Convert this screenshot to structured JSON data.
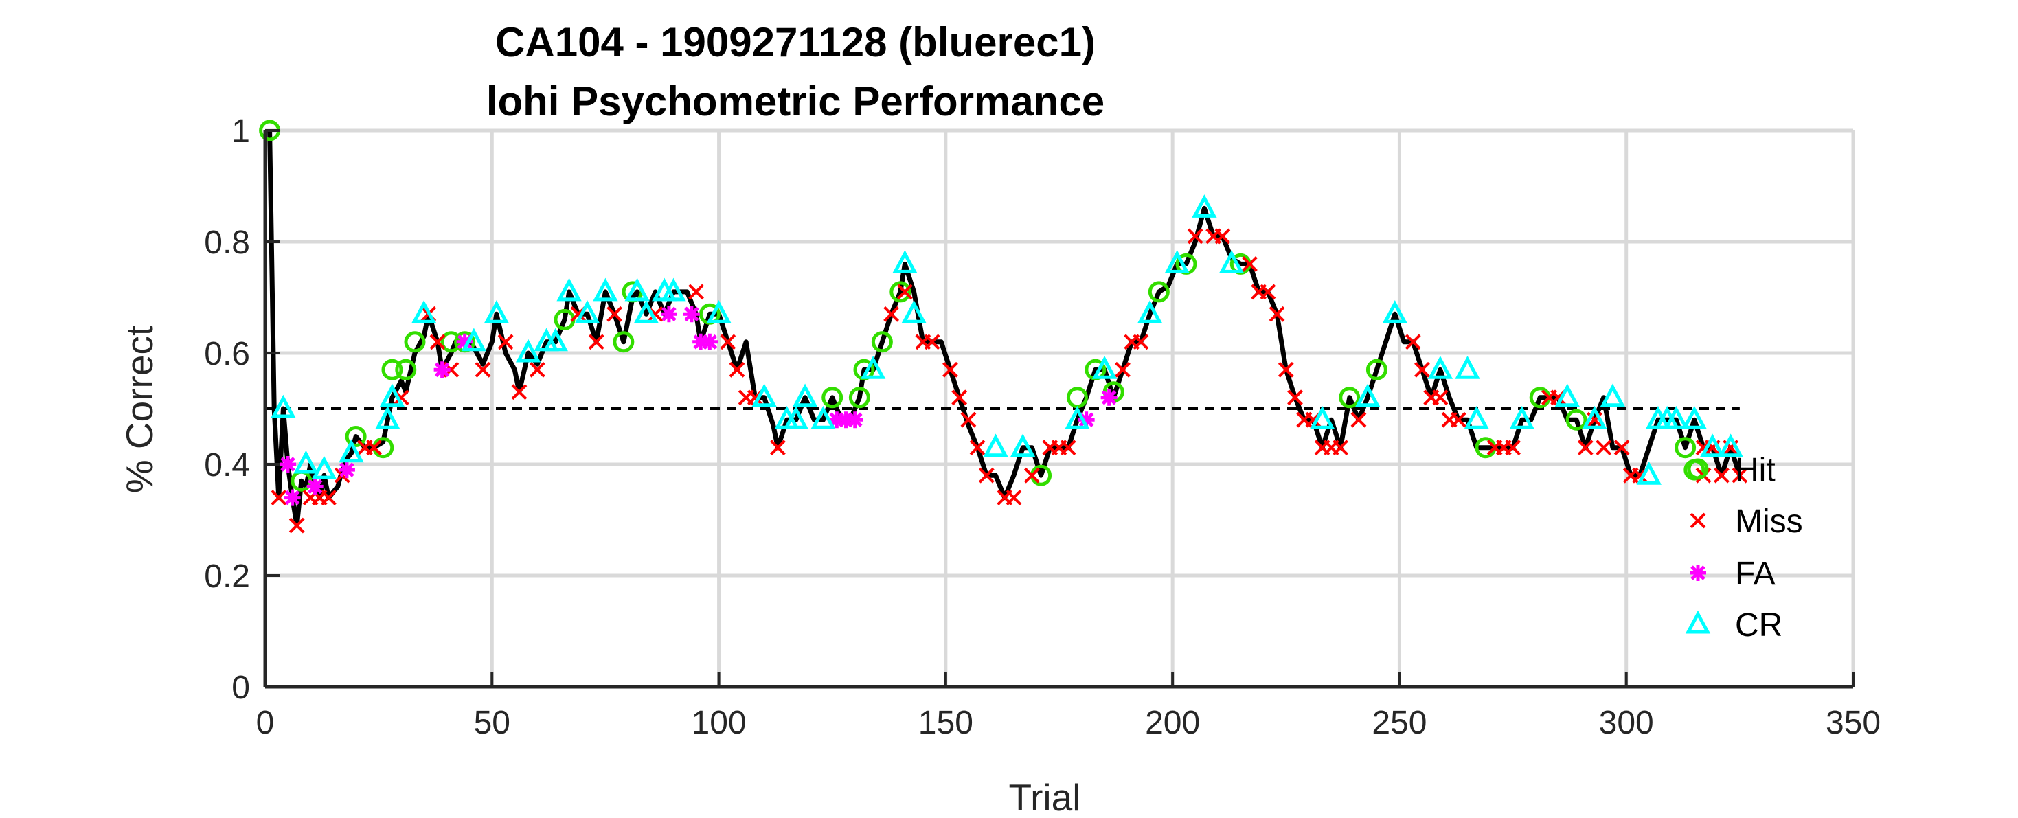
{
  "chart_data": {
    "type": "line",
    "title": "CA104 - 1909271128 (bluerec1)",
    "subtitle": "lohi Psychometric Performance",
    "xlabel": "Trial",
    "ylabel": "% Correct",
    "xlim": [
      0,
      350
    ],
    "ylim": [
      0,
      1
    ],
    "xticks": [
      "0",
      "50",
      "100",
      "150",
      "200",
      "250",
      "300",
      "350"
    ],
    "yticks": [
      "0",
      "0.2",
      "0.4",
      "0.6",
      "0.8",
      "1"
    ],
    "grid": true,
    "legend_position": "right",
    "reference_line": {
      "y": 0.5,
      "x_range": [
        0,
        325
      ],
      "style": "dashed"
    },
    "colors": {
      "line": "#000000",
      "Hit": "#33dd00",
      "Miss": "#ff0000",
      "FA": "#ff00ff",
      "CR": "#00ffff",
      "ref": "#000000",
      "grid": "#d9d9d9"
    },
    "performance_line": [
      [
        1,
        1.0
      ],
      [
        2,
        0.5
      ],
      [
        3,
        0.34
      ],
      [
        4,
        0.5
      ],
      [
        5,
        0.4
      ],
      [
        6,
        0.34
      ],
      [
        7,
        0.29
      ],
      [
        8,
        0.37
      ],
      [
        9,
        0.36
      ],
      [
        10,
        0.4
      ],
      [
        11,
        0.36
      ],
      [
        12,
        0.34
      ],
      [
        13,
        0.38
      ],
      [
        14,
        0.34
      ],
      [
        15,
        0.35
      ],
      [
        16,
        0.36
      ],
      [
        17,
        0.39
      ],
      [
        18,
        0.41
      ],
      [
        19,
        0.42
      ],
      [
        20,
        0.45
      ],
      [
        22,
        0.43
      ],
      [
        24,
        0.43
      ],
      [
        26,
        0.44
      ],
      [
        27,
        0.48
      ],
      [
        28,
        0.52
      ],
      [
        30,
        0.55
      ],
      [
        31,
        0.53
      ],
      [
        33,
        0.6
      ],
      [
        35,
        0.63
      ],
      [
        36,
        0.67
      ],
      [
        38,
        0.62
      ],
      [
        39,
        0.57
      ],
      [
        41,
        0.6
      ],
      [
        42,
        0.62
      ],
      [
        44,
        0.62
      ],
      [
        46,
        0.61
      ],
      [
        48,
        0.58
      ],
      [
        50,
        0.62
      ],
      [
        51,
        0.67
      ],
      [
        53,
        0.6
      ],
      [
        55,
        0.57
      ],
      [
        56,
        0.53
      ],
      [
        58,
        0.6
      ],
      [
        60,
        0.58
      ],
      [
        62,
        0.62
      ],
      [
        64,
        0.62
      ],
      [
        66,
        0.66
      ],
      [
        67,
        0.71
      ],
      [
        69,
        0.67
      ],
      [
        71,
        0.67
      ],
      [
        73,
        0.62
      ],
      [
        75,
        0.71
      ],
      [
        77,
        0.67
      ],
      [
        79,
        0.62
      ],
      [
        81,
        0.7
      ],
      [
        82,
        0.71
      ],
      [
        84,
        0.67
      ],
      [
        86,
        0.71
      ],
      [
        88,
        0.67
      ],
      [
        90,
        0.71
      ],
      [
        93,
        0.71
      ],
      [
        95,
        0.67
      ],
      [
        96,
        0.62
      ],
      [
        98,
        0.67
      ],
      [
        100,
        0.67
      ],
      [
        102,
        0.62
      ],
      [
        104,
        0.57
      ],
      [
        106,
        0.62
      ],
      [
        108,
        0.52
      ],
      [
        110,
        0.52
      ],
      [
        112,
        0.47
      ],
      [
        113,
        0.43
      ],
      [
        115,
        0.48
      ],
      [
        117,
        0.48
      ],
      [
        119,
        0.52
      ],
      [
        121,
        0.48
      ],
      [
        123,
        0.48
      ],
      [
        125,
        0.52
      ],
      [
        127,
        0.48
      ],
      [
        129,
        0.48
      ],
      [
        131,
        0.52
      ],
      [
        132,
        0.57
      ],
      [
        134,
        0.57
      ],
      [
        136,
        0.62
      ],
      [
        138,
        0.67
      ],
      [
        140,
        0.71
      ],
      [
        141,
        0.76
      ],
      [
        143,
        0.71
      ],
      [
        145,
        0.62
      ],
      [
        147,
        0.62
      ],
      [
        149,
        0.62
      ],
      [
        151,
        0.57
      ],
      [
        153,
        0.52
      ],
      [
        155,
        0.47
      ],
      [
        157,
        0.43
      ],
      [
        159,
        0.38
      ],
      [
        161,
        0.38
      ],
      [
        163,
        0.34
      ],
      [
        165,
        0.38
      ],
      [
        167,
        0.43
      ],
      [
        169,
        0.43
      ],
      [
        171,
        0.38
      ],
      [
        173,
        0.43
      ],
      [
        175,
        0.43
      ],
      [
        177,
        0.43
      ],
      [
        179,
        0.48
      ],
      [
        181,
        0.52
      ],
      [
        183,
        0.57
      ],
      [
        185,
        0.57
      ],
      [
        187,
        0.52
      ],
      [
        189,
        0.57
      ],
      [
        191,
        0.62
      ],
      [
        193,
        0.62
      ],
      [
        195,
        0.67
      ],
      [
        197,
        0.71
      ],
      [
        199,
        0.72
      ],
      [
        201,
        0.76
      ],
      [
        203,
        0.76
      ],
      [
        205,
        0.8
      ],
      [
        207,
        0.86
      ],
      [
        209,
        0.81
      ],
      [
        211,
        0.81
      ],
      [
        213,
        0.77
      ],
      [
        215,
        0.76
      ],
      [
        217,
        0.76
      ],
      [
        219,
        0.71
      ],
      [
        221,
        0.71
      ],
      [
        223,
        0.67
      ],
      [
        225,
        0.57
      ],
      [
        227,
        0.52
      ],
      [
        229,
        0.48
      ],
      [
        231,
        0.48
      ],
      [
        233,
        0.43
      ],
      [
        235,
        0.48
      ],
      [
        237,
        0.43
      ],
      [
        239,
        0.52
      ],
      [
        241,
        0.48
      ],
      [
        243,
        0.52
      ],
      [
        245,
        0.57
      ],
      [
        247,
        0.62
      ],
      [
        249,
        0.67
      ],
      [
        251,
        0.62
      ],
      [
        253,
        0.62
      ],
      [
        255,
        0.57
      ],
      [
        257,
        0.52
      ],
      [
        259,
        0.57
      ],
      [
        261,
        0.52
      ],
      [
        263,
        0.48
      ],
      [
        265,
        0.48
      ],
      [
        267,
        0.43
      ],
      [
        269,
        0.43
      ],
      [
        271,
        0.43
      ],
      [
        273,
        0.43
      ],
      [
        275,
        0.43
      ],
      [
        277,
        0.48
      ],
      [
        279,
        0.48
      ],
      [
        281,
        0.52
      ],
      [
        283,
        0.52
      ],
      [
        285,
        0.52
      ],
      [
        287,
        0.48
      ],
      [
        289,
        0.48
      ],
      [
        291,
        0.43
      ],
      [
        293,
        0.48
      ],
      [
        295,
        0.52
      ],
      [
        297,
        0.43
      ],
      [
        299,
        0.43
      ],
      [
        301,
        0.38
      ],
      [
        303,
        0.38
      ],
      [
        305,
        0.43
      ],
      [
        307,
        0.48
      ],
      [
        309,
        0.48
      ],
      [
        311,
        0.48
      ],
      [
        313,
        0.43
      ],
      [
        315,
        0.48
      ],
      [
        317,
        0.43
      ],
      [
        319,
        0.43
      ],
      [
        321,
        0.38
      ],
      [
        323,
        0.43
      ],
      [
        325,
        0.38
      ]
    ],
    "series": [
      {
        "name": "Hit",
        "marker": "circle",
        "points": [
          [
            1,
            1.0
          ],
          [
            8,
            0.37
          ],
          [
            20,
            0.45
          ],
          [
            26,
            0.43
          ],
          [
            28,
            0.57
          ],
          [
            31,
            0.57
          ],
          [
            33,
            0.62
          ],
          [
            41,
            0.62
          ],
          [
            44,
            0.62
          ],
          [
            66,
            0.66
          ],
          [
            79,
            0.62
          ],
          [
            81,
            0.71
          ],
          [
            98,
            0.67
          ],
          [
            125,
            0.52
          ],
          [
            131,
            0.52
          ],
          [
            132,
            0.57
          ],
          [
            136,
            0.62
          ],
          [
            140,
            0.71
          ],
          [
            171,
            0.38
          ],
          [
            179,
            0.52
          ],
          [
            183,
            0.57
          ],
          [
            187,
            0.53
          ],
          [
            197,
            0.71
          ],
          [
            203,
            0.76
          ],
          [
            215,
            0.76
          ],
          [
            239,
            0.52
          ],
          [
            245,
            0.57
          ],
          [
            269,
            0.43
          ],
          [
            281,
            0.52
          ],
          [
            289,
            0.48
          ],
          [
            313,
            0.43
          ],
          [
            315,
            0.39
          ]
        ]
      },
      {
        "name": "Miss",
        "marker": "x",
        "points": [
          [
            3,
            0.34
          ],
          [
            7,
            0.29
          ],
          [
            10,
            0.34
          ],
          [
            12,
            0.34
          ],
          [
            14,
            0.34
          ],
          [
            17,
            0.38
          ],
          [
            22,
            0.43
          ],
          [
            24,
            0.43
          ],
          [
            30,
            0.52
          ],
          [
            36,
            0.67
          ],
          [
            38,
            0.62
          ],
          [
            41,
            0.57
          ],
          [
            48,
            0.57
          ],
          [
            53,
            0.62
          ],
          [
            56,
            0.53
          ],
          [
            60,
            0.57
          ],
          [
            69,
            0.67
          ],
          [
            73,
            0.62
          ],
          [
            77,
            0.67
          ],
          [
            86,
            0.67
          ],
          [
            95,
            0.71
          ],
          [
            102,
            0.62
          ],
          [
            104,
            0.57
          ],
          [
            106,
            0.52
          ],
          [
            108,
            0.52
          ],
          [
            113,
            0.43
          ],
          [
            138,
            0.67
          ],
          [
            141,
            0.71
          ],
          [
            145,
            0.62
          ],
          [
            147,
            0.62
          ],
          [
            151,
            0.57
          ],
          [
            153,
            0.52
          ],
          [
            155,
            0.48
          ],
          [
            157,
            0.43
          ],
          [
            159,
            0.38
          ],
          [
            163,
            0.34
          ],
          [
            165,
            0.34
          ],
          [
            169,
            0.38
          ],
          [
            173,
            0.43
          ],
          [
            175,
            0.43
          ],
          [
            177,
            0.43
          ],
          [
            189,
            0.57
          ],
          [
            191,
            0.62
          ],
          [
            193,
            0.62
          ],
          [
            205,
            0.81
          ],
          [
            209,
            0.81
          ],
          [
            211,
            0.81
          ],
          [
            217,
            0.76
          ],
          [
            219,
            0.71
          ],
          [
            221,
            0.71
          ],
          [
            223,
            0.67
          ],
          [
            225,
            0.57
          ],
          [
            227,
            0.52
          ],
          [
            229,
            0.48
          ],
          [
            231,
            0.48
          ],
          [
            233,
            0.43
          ],
          [
            235,
            0.43
          ],
          [
            237,
            0.43
          ],
          [
            241,
            0.48
          ],
          [
            253,
            0.62
          ],
          [
            255,
            0.57
          ],
          [
            257,
            0.52
          ],
          [
            259,
            0.52
          ],
          [
            261,
            0.48
          ],
          [
            263,
            0.48
          ],
          [
            271,
            0.43
          ],
          [
            273,
            0.43
          ],
          [
            275,
            0.43
          ],
          [
            283,
            0.52
          ],
          [
            285,
            0.52
          ],
          [
            291,
            0.43
          ],
          [
            293,
            0.48
          ],
          [
            295,
            0.43
          ],
          [
            299,
            0.43
          ],
          [
            301,
            0.38
          ],
          [
            303,
            0.38
          ],
          [
            317,
            0.43
          ],
          [
            319,
            0.43
          ],
          [
            321,
            0.38
          ],
          [
            323,
            0.43
          ],
          [
            325,
            0.38
          ],
          [
            317,
            0.38
          ]
        ]
      },
      {
        "name": "FA",
        "marker": "asterisk",
        "points": [
          [
            5,
            0.4
          ],
          [
            6,
            0.34
          ],
          [
            11,
            0.36
          ],
          [
            18,
            0.39
          ],
          [
            39,
            0.57
          ],
          [
            44,
            0.62
          ],
          [
            89,
            0.67
          ],
          [
            94,
            0.67
          ],
          [
            96,
            0.62
          ],
          [
            98,
            0.62
          ],
          [
            126,
            0.48
          ],
          [
            128,
            0.48
          ],
          [
            130,
            0.48
          ],
          [
            181,
            0.48
          ],
          [
            186,
            0.52
          ]
        ]
      },
      {
        "name": "CR",
        "marker": "triangle",
        "points": [
          [
            4,
            0.5
          ],
          [
            9,
            0.4
          ],
          [
            13,
            0.39
          ],
          [
            19,
            0.42
          ],
          [
            27,
            0.48
          ],
          [
            28,
            0.52
          ],
          [
            35,
            0.67
          ],
          [
            46,
            0.62
          ],
          [
            51,
            0.67
          ],
          [
            58,
            0.6
          ],
          [
            62,
            0.62
          ],
          [
            64,
            0.62
          ],
          [
            67,
            0.71
          ],
          [
            71,
            0.67
          ],
          [
            75,
            0.71
          ],
          [
            82,
            0.71
          ],
          [
            84,
            0.67
          ],
          [
            88,
            0.71
          ],
          [
            90,
            0.71
          ],
          [
            100,
            0.67
          ],
          [
            110,
            0.52
          ],
          [
            115,
            0.48
          ],
          [
            117,
            0.48
          ],
          [
            119,
            0.52
          ],
          [
            123,
            0.48
          ],
          [
            134,
            0.57
          ],
          [
            141,
            0.76
          ],
          [
            143,
            0.67
          ],
          [
            161,
            0.43
          ],
          [
            167,
            0.43
          ],
          [
            179,
            0.48
          ],
          [
            185,
            0.57
          ],
          [
            195,
            0.67
          ],
          [
            201,
            0.76
          ],
          [
            207,
            0.86
          ],
          [
            213,
            0.76
          ],
          [
            233,
            0.48
          ],
          [
            243,
            0.52
          ],
          [
            249,
            0.67
          ],
          [
            259,
            0.57
          ],
          [
            265,
            0.57
          ],
          [
            267,
            0.48
          ],
          [
            277,
            0.48
          ],
          [
            287,
            0.52
          ],
          [
            293,
            0.48
          ],
          [
            297,
            0.52
          ],
          [
            305,
            0.38
          ],
          [
            307,
            0.48
          ],
          [
            309,
            0.48
          ],
          [
            311,
            0.48
          ],
          [
            315,
            0.48
          ],
          [
            319,
            0.43
          ],
          [
            323,
            0.43
          ]
        ]
      }
    ]
  }
}
